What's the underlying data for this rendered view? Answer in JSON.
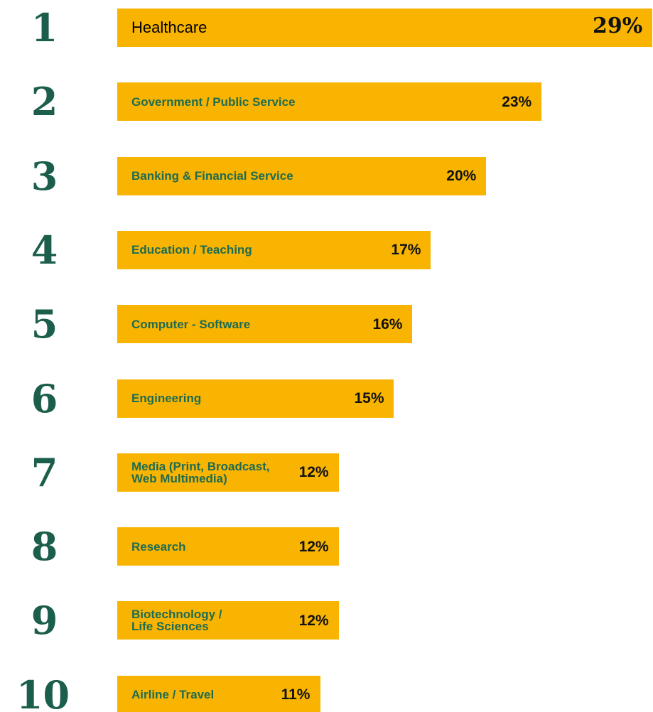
{
  "chart_data": {
    "type": "bar",
    "ranks": [
      1,
      2,
      3,
      4,
      5,
      6,
      7,
      8,
      9,
      10
    ],
    "categories": [
      "Healthcare",
      "Government / Public Service",
      "Banking & Financial Service",
      "Education / Teaching",
      "Computer - Software",
      "Engineering",
      "Media (Print, Broadcast,\nWeb Multimedia)",
      "Research",
      "Biotechnology /\nLife Sciences",
      "Airline / Travel"
    ],
    "values": [
      29,
      23,
      20,
      17,
      16,
      15,
      12,
      12,
      12,
      11
    ],
    "value_labels": [
      "29%",
      "23%",
      "20%",
      "17%",
      "16%",
      "15%",
      "12%",
      "12%",
      "12%",
      "11%"
    ],
    "color": "#f8b400"
  }
}
